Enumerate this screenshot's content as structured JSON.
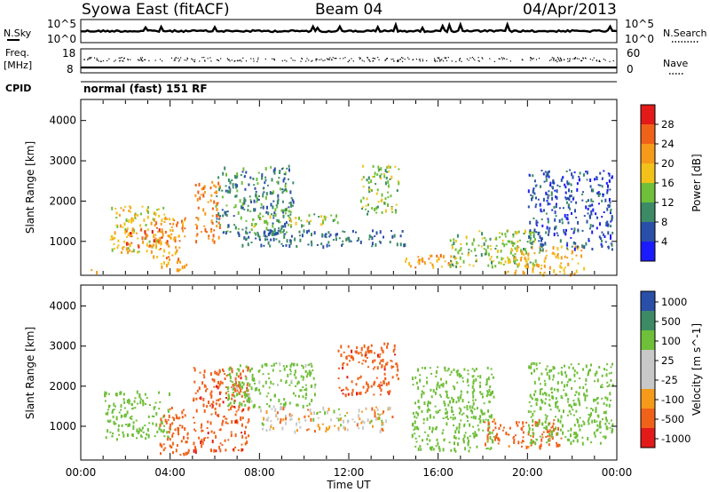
{
  "header": {
    "title": "Syowa East (fitACF)",
    "beam": "Beam 04",
    "date": "04/Apr/2013"
  },
  "noise_panel": {
    "left_label": "N.Sky",
    "left_ticks": [
      "10^5",
      "10^0"
    ],
    "right_label": "N.Search",
    "right_ticks": [
      "10^5",
      "10^0"
    ]
  },
  "freq_panel": {
    "left_label_line1": "Freq.",
    "left_label_line2": "[MHz]",
    "left_ticks": [
      "18",
      "8"
    ],
    "right_label": "Nave",
    "right_ticks": [
      "60",
      "0"
    ]
  },
  "cpid_panel": {
    "label": "CPID",
    "value": "normal (fast) 151 RF"
  },
  "x_axis": {
    "label": "Time UT",
    "ticks": [
      "00:00",
      "04:00",
      "08:00",
      "12:00",
      "16:00",
      "20:00",
      "00:00"
    ]
  },
  "colors": {
    "power_scale": [
      "#1b1bff",
      "#2a4fa8",
      "#3c8a66",
      "#6fbf3a",
      "#f2c21a",
      "#f59a1a",
      "#f0621a",
      "#e31a1a"
    ],
    "velocity_scale": [
      "#e31a1a",
      "#f0621a",
      "#f59a1a",
      "#c8c8c8",
      "#c8c8c8",
      "#6fbf3a",
      "#3c8a66",
      "#2a4fa8"
    ]
  },
  "chart_data": [
    {
      "type": "heatmap",
      "title": "Power",
      "xlabel": "Time UT",
      "ylabel": "Slant Range [km]",
      "x_ticks": [
        "00:00",
        "04:00",
        "08:00",
        "12:00",
        "16:00",
        "20:00",
        "00:00"
      ],
      "y_ticks": [
        1000,
        2000,
        3000,
        4000
      ],
      "ylim": [
        180,
        4500
      ],
      "colorbar": {
        "label": "Power [dB]",
        "ticks": [
          4,
          8,
          12,
          16,
          20,
          24,
          28
        ],
        "range": [
          0,
          32
        ]
      },
      "clusters": [
        {
          "t": [
            0.4,
            1.0
          ],
          "r": [
            250,
            350
          ],
          "level": 20
        },
        {
          "t": [
            1.3,
            3.8
          ],
          "r": [
            750,
            1900
          ],
          "level": 18
        },
        {
          "t": [
            2.0,
            3.9
          ],
          "r": [
            900,
            1350
          ],
          "level": 26
        },
        {
          "t": [
            3.2,
            4.7
          ],
          "r": [
            300,
            1600
          ],
          "level": 22
        },
        {
          "t": [
            5.1,
            6.2
          ],
          "r": [
            1000,
            2500
          ],
          "level": 24
        },
        {
          "t": [
            6.0,
            9.5
          ],
          "r": [
            1200,
            2900
          ],
          "level": 10
        },
        {
          "t": [
            7.5,
            11.5
          ],
          "r": [
            1400,
            1700
          ],
          "level": 14
        },
        {
          "t": [
            7.0,
            14.5
          ],
          "r": [
            900,
            1300
          ],
          "level": 8
        },
        {
          "t": [
            12.5,
            14.2
          ],
          "r": [
            1700,
            2900
          ],
          "level": 14
        },
        {
          "t": [
            14.5,
            17.0
          ],
          "r": [
            350,
            700
          ],
          "level": 22
        },
        {
          "t": [
            16.5,
            20.5
          ],
          "r": [
            400,
            1300
          ],
          "level": 14
        },
        {
          "t": [
            19.0,
            22.5
          ],
          "r": [
            200,
            900
          ],
          "level": 20
        },
        {
          "t": [
            20.0,
            23.8
          ],
          "r": [
            800,
            2800
          ],
          "level": 6
        }
      ]
    },
    {
      "type": "heatmap",
      "title": "Velocity",
      "xlabel": "Time UT",
      "ylabel": "Slant Range [km]",
      "x_ticks": [
        "00:00",
        "04:00",
        "08:00",
        "12:00",
        "16:00",
        "20:00",
        "00:00"
      ],
      "y_ticks": [
        1000,
        2000,
        3000,
        4000
      ],
      "ylim": [
        180,
        4500
      ],
      "colorbar": {
        "label": "Velocity [m s^-1]",
        "ticks": [
          1000,
          500,
          100,
          25,
          -25,
          -100,
          -500,
          -1000
        ]
      },
      "clusters": [
        {
          "t": [
            1.0,
            4.0
          ],
          "r": [
            700,
            1900
          ],
          "level": 300
        },
        {
          "t": [
            3.5,
            4.8
          ],
          "r": [
            300,
            1500
          ],
          "level": -300
        },
        {
          "t": [
            5.0,
            7.5
          ],
          "r": [
            400,
            2500
          ],
          "level": -400
        },
        {
          "t": [
            6.5,
            10.5
          ],
          "r": [
            1500,
            2600
          ],
          "level": 200
        },
        {
          "t": [
            8.0,
            14.0
          ],
          "r": [
            900,
            1500
          ],
          "level": 0
        },
        {
          "t": [
            11.5,
            14.2
          ],
          "r": [
            1800,
            3100
          ],
          "level": -400
        },
        {
          "t": [
            14.8,
            18.5
          ],
          "r": [
            400,
            2500
          ],
          "level": 300
        },
        {
          "t": [
            18.0,
            21.5
          ],
          "r": [
            500,
            1200
          ],
          "level": -200
        },
        {
          "t": [
            20.0,
            23.8
          ],
          "r": [
            600,
            2600
          ],
          "level": 300
        }
      ]
    }
  ]
}
